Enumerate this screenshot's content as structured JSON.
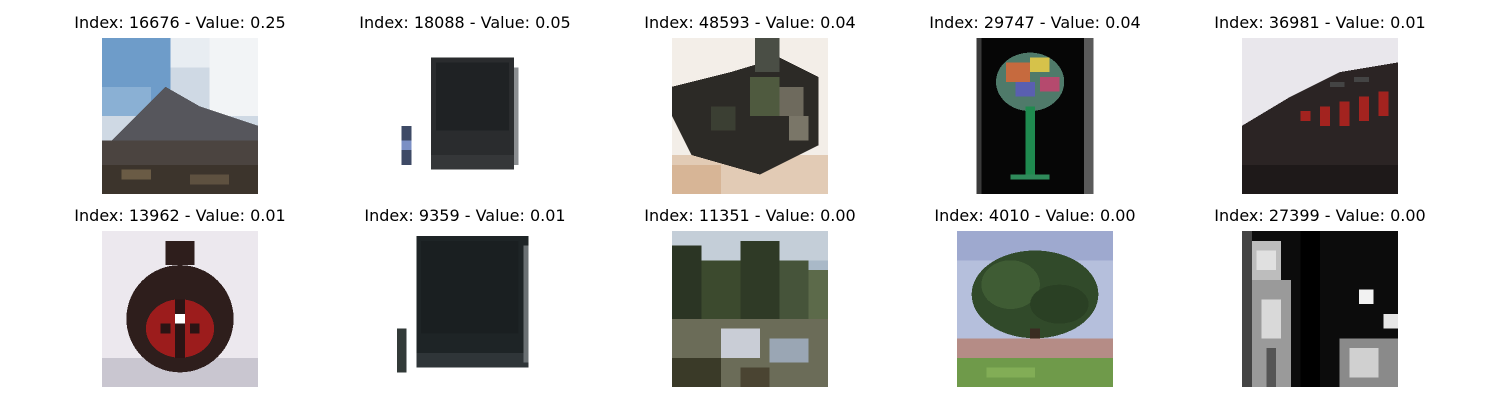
{
  "images": [
    {
      "caption": "Index: 16676 - Value: 0.25",
      "subject": "mountain-landscape"
    },
    {
      "caption": "Index: 18088 - Value: 0.05",
      "subject": "crt-television"
    },
    {
      "caption": "Index: 48593 - Value: 0.04",
      "subject": "camouflaged-object"
    },
    {
      "caption": "Index: 29747 - Value: 0.04",
      "subject": "glass-on-dark"
    },
    {
      "caption": "Index: 36981 - Value: 0.01",
      "subject": "digital-clock"
    },
    {
      "caption": "Index: 13962 - Value: 0.01",
      "subject": "ladybug-toy"
    },
    {
      "caption": "Index: 9359 - Value: 0.01",
      "subject": "crt-television"
    },
    {
      "caption": "Index: 11351 - Value: 0.00",
      "subject": "lake-with-trees"
    },
    {
      "caption": "Index: 4010 - Value: 0.00",
      "subject": "tree-in-field"
    },
    {
      "caption": "Index: 27399 - Value: 0.00",
      "subject": "grayscale-people"
    }
  ]
}
